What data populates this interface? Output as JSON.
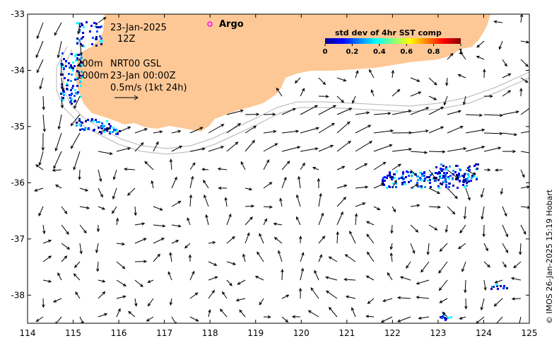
{
  "map": {
    "lon_range": [
      114,
      125
    ],
    "lat_range": [
      -38.5,
      -33
    ],
    "x_ticks": [
      "114",
      "115",
      "116",
      "117",
      "118",
      "119",
      "120",
      "121",
      "122",
      "123",
      "124",
      "125"
    ],
    "y_ticks": [
      "-33",
      "-34",
      "-35",
      "-36",
      "-37",
      "-38"
    ],
    "colors": {
      "land": "#fdc896",
      "contour": "#b4b4b4",
      "vector": "#000000",
      "argo": "#ff00ff"
    }
  },
  "annotations": {
    "date": "23-Jan-2025",
    "hour": "12Z",
    "depth_200": "200m",
    "depth_1000": "1000m",
    "product": "NRT00 GSL",
    "time": "23-Jan 00:00Z",
    "scale": "0.5m/s (1kt 24h)"
  },
  "legend": {
    "argo_label": "Argo",
    "colorbar_title": "std dev of 4hr SST comp",
    "colorbar_ticks": [
      "0",
      "0.2",
      "0.4",
      "0.6",
      "0.8",
      "1"
    ]
  },
  "credit": "© IMOS 26-Jan-2025 15:19 Hobart"
}
